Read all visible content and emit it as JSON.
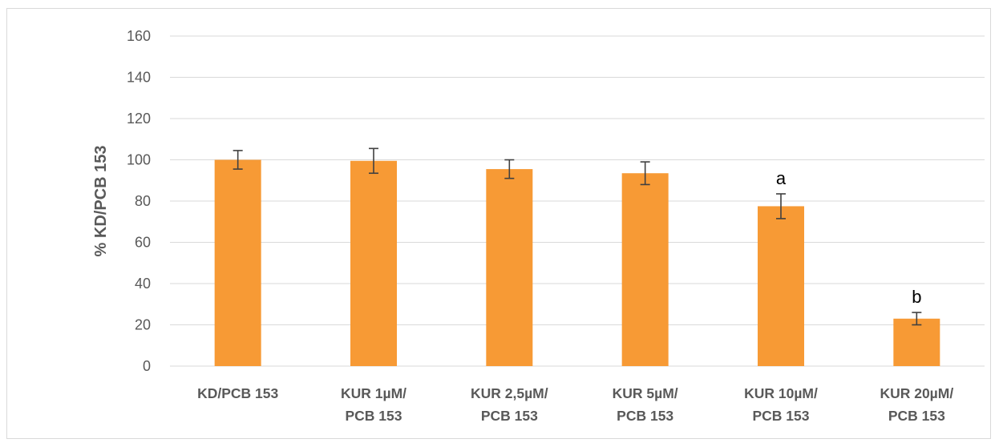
{
  "chart_data": {
    "type": "bar",
    "title": "",
    "xlabel": "",
    "ylabel": "% KD/PCB 153",
    "ylim": [
      0,
      160
    ],
    "yticks": [
      0,
      20,
      40,
      60,
      80,
      100,
      120,
      140,
      160
    ],
    "grid": true,
    "legend": "none",
    "categories": [
      [
        "KD/PCB 153"
      ],
      [
        "KUR 1µM/",
        "PCB 153"
      ],
      [
        "KUR 2,5µM/",
        "PCB 153"
      ],
      [
        "KUR 5µM/",
        "PCB 153"
      ],
      [
        "KUR 10µM/",
        "PCB 153"
      ],
      [
        "KUR 20µM/",
        "PCB 153"
      ]
    ],
    "values": [
      100,
      99.5,
      95.5,
      93.5,
      77.5,
      23
    ],
    "errors": [
      4.5,
      6,
      4.5,
      5.5,
      6,
      3
    ],
    "annotations": [
      "",
      "",
      "",
      "",
      "a",
      "b"
    ],
    "colors": {
      "bar": "#f79a35",
      "grid": "#d9d9d9",
      "error_bar": "#404040",
      "text": "#595959"
    }
  }
}
